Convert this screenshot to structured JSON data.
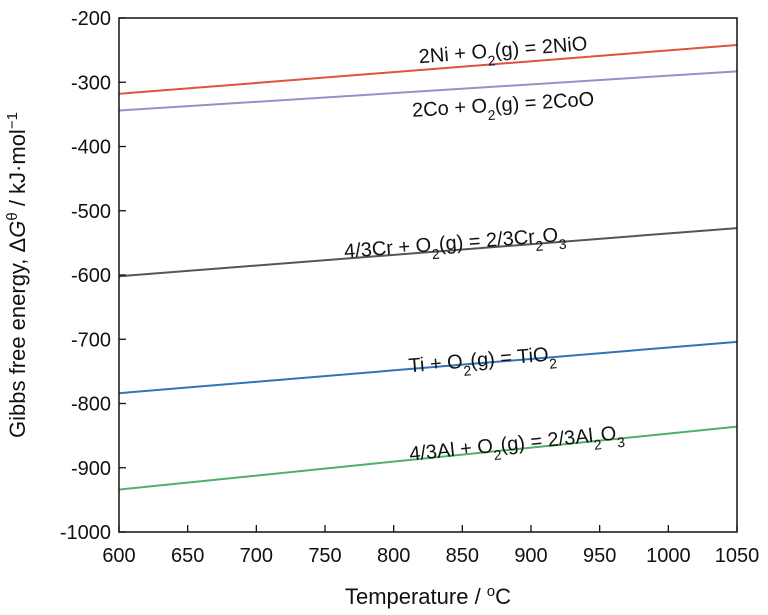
{
  "chart_data": {
    "type": "line",
    "xlabel": {
      "main": "Temperature / ",
      "sup": "o",
      "tail": "C"
    },
    "ylabel": {
      "main": "Gibbs free energy, Δ",
      "G": "G",
      "theta": "θ",
      "unit": " / kJ·mol",
      "exp": "−1"
    },
    "xlim": [
      600,
      1050
    ],
    "ylim": [
      -1000,
      -200
    ],
    "x_ticks": [
      600,
      650,
      700,
      750,
      800,
      850,
      900,
      950,
      1000,
      1050
    ],
    "y_ticks": [
      -200,
      -300,
      -400,
      -500,
      -600,
      -700,
      -800,
      -900,
      -1000
    ],
    "grid": false,
    "series": [
      {
        "label_parts": [
          [
            "2Ni + O",
            false
          ],
          [
            "2",
            true
          ],
          [
            "(g) = 2NiO",
            false
          ]
        ],
        "color": "#e0533f",
        "points": [
          [
            600,
            -318
          ],
          [
            1050,
            -242
          ]
        ],
        "label_anchor": [
          880,
          -260
        ]
      },
      {
        "label_parts": [
          [
            "2Co + O",
            false
          ],
          [
            "2",
            true
          ],
          [
            "(g) = 2CoO",
            false
          ]
        ],
        "color": "#9b8dc8",
        "points": [
          [
            600,
            -344
          ],
          [
            1050,
            -283
          ]
        ],
        "label_anchor": [
          880,
          -345
        ]
      },
      {
        "label_parts": [
          [
            "4/3Cr + O",
            false
          ],
          [
            "2",
            true
          ],
          [
            "(g) = 2/3Cr",
            false
          ],
          [
            "2",
            true
          ],
          [
            "O",
            false
          ],
          [
            "3",
            true
          ]
        ],
        "color": "#555555",
        "points": [
          [
            600,
            -602
          ],
          [
            1050,
            -527
          ]
        ],
        "label_anchor": [
          845,
          -560
        ]
      },
      {
        "label_parts": [
          [
            "Ti + O",
            false
          ],
          [
            "2",
            true
          ],
          [
            "(g) = TiO",
            false
          ],
          [
            "2",
            true
          ]
        ],
        "color": "#3372b8",
        "points": [
          [
            600,
            -784
          ],
          [
            1050,
            -704
          ]
        ],
        "label_anchor": [
          865,
          -742
        ]
      },
      {
        "label_parts": [
          [
            "4/3Al + O",
            false
          ],
          [
            "2",
            true
          ],
          [
            "(g) = 2/3Al",
            false
          ],
          [
            "2",
            true
          ],
          [
            "O",
            false
          ],
          [
            "3",
            true
          ]
        ],
        "color": "#4fb06a",
        "points": [
          [
            600,
            -934
          ],
          [
            1050,
            -836
          ]
        ],
        "label_anchor": [
          890,
          -872
        ]
      }
    ]
  }
}
